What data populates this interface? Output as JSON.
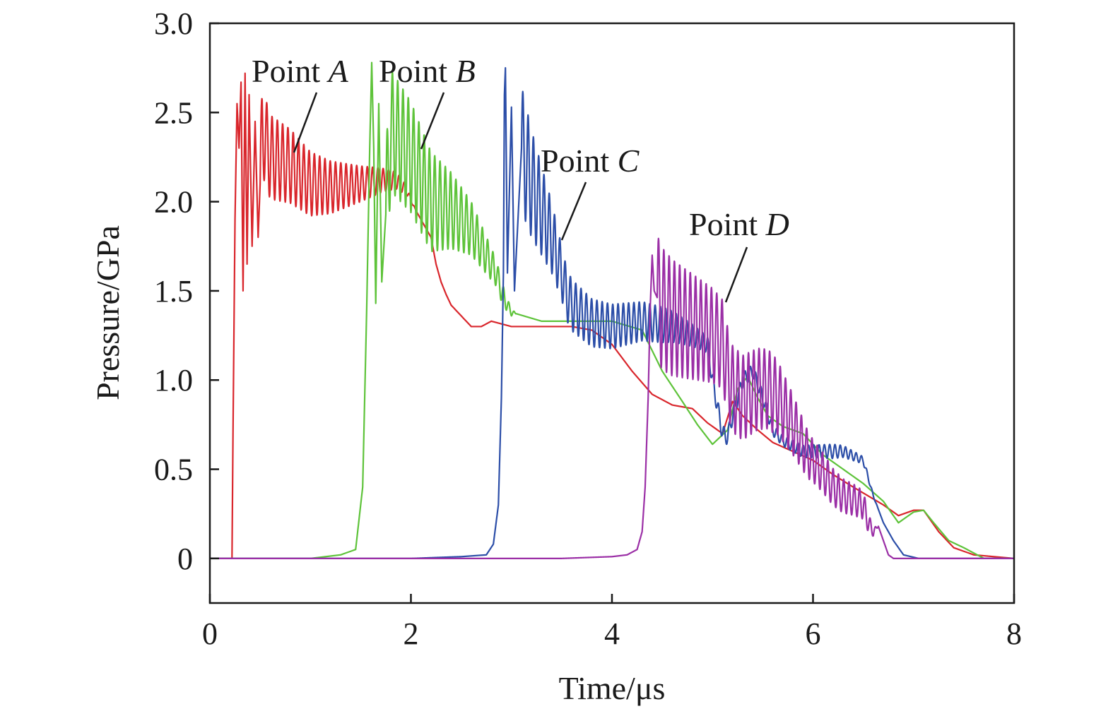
{
  "chart_data": {
    "type": "line",
    "xlabel": "Time/μs",
    "ylabel": "Pressure/GPa",
    "xlim": [
      0,
      8
    ],
    "ylim": [
      -0.25,
      3.0
    ],
    "xticks": [
      0,
      2,
      4,
      6,
      8
    ],
    "xtick_labels": [
      "0",
      "2",
      "4",
      "6",
      "8"
    ],
    "yticks": [
      0,
      0.5,
      1.0,
      1.5,
      2.0,
      2.5,
      3.0
    ],
    "ytick_labels": [
      "0",
      "0.5",
      "1.0",
      "1.5",
      "2.0",
      "2.5",
      "3.0"
    ],
    "grid": false,
    "annotations": [
      {
        "prefix": "Point ",
        "letter": "A"
      },
      {
        "prefix": "Point ",
        "letter": "B"
      },
      {
        "prefix": "Point ",
        "letter": "C"
      },
      {
        "prefix": "Point ",
        "letter": "D"
      }
    ],
    "series": [
      {
        "color": "#d9262c",
        "points": [
          [
            0,
            0
          ],
          [
            0.22,
            0
          ],
          [
            0.23,
            0.7
          ],
          [
            0.25,
            1.9
          ],
          [
            0.27,
            2.55
          ],
          [
            0.29,
            2.3
          ],
          [
            0.31,
            2.67
          ],
          [
            0.33,
            1.5
          ],
          [
            0.35,
            2.72
          ],
          [
            0.37,
            1.65
          ],
          [
            0.39,
            2.6
          ],
          [
            0.42,
            1.75
          ],
          [
            0.45,
            2.45
          ],
          [
            0.48,
            1.8
          ],
          [
            0.52,
            2.4
          ],
          [
            0.6,
            2.25
          ],
          [
            0.8,
            2.2
          ],
          [
            1.0,
            2.1
          ],
          [
            1.2,
            2.08
          ],
          [
            1.5,
            2.1
          ],
          [
            1.7,
            2.12
          ],
          [
            1.85,
            2.12
          ],
          [
            1.95,
            2.07
          ],
          [
            2.05,
            1.95
          ],
          [
            2.15,
            1.85
          ],
          [
            2.2,
            1.8
          ],
          [
            2.25,
            1.65
          ],
          [
            2.3,
            1.55
          ],
          [
            2.35,
            1.48
          ],
          [
            2.4,
            1.42
          ],
          [
            2.5,
            1.36
          ],
          [
            2.6,
            1.3
          ],
          [
            2.7,
            1.3
          ],
          [
            2.8,
            1.33
          ],
          [
            3.0,
            1.3
          ],
          [
            3.3,
            1.3
          ],
          [
            3.6,
            1.3
          ],
          [
            3.8,
            1.28
          ],
          [
            4.0,
            1.2
          ],
          [
            4.2,
            1.05
          ],
          [
            4.4,
            0.92
          ],
          [
            4.6,
            0.86
          ],
          [
            4.8,
            0.84
          ],
          [
            4.95,
            0.76
          ],
          [
            5.1,
            0.7
          ],
          [
            5.2,
            0.88
          ],
          [
            5.3,
            0.8
          ],
          [
            5.45,
            0.72
          ],
          [
            5.6,
            0.65
          ],
          [
            5.8,
            0.6
          ],
          [
            6.0,
            0.55
          ],
          [
            6.2,
            0.47
          ],
          [
            6.4,
            0.4
          ],
          [
            6.55,
            0.35
          ],
          [
            6.7,
            0.3
          ],
          [
            6.85,
            0.24
          ],
          [
            7.0,
            0.27
          ],
          [
            7.1,
            0.27
          ],
          [
            7.25,
            0.15
          ],
          [
            7.4,
            0.06
          ],
          [
            7.6,
            0.02
          ],
          [
            8.0,
            0
          ]
        ],
        "osc": [
          [
            0.5,
            2.1,
            0.25
          ],
          [
            1.0,
            2.08,
            0.18
          ],
          [
            1.5,
            2.1,
            0.1
          ],
          [
            1.9,
            2.1,
            0.04
          ]
        ]
      },
      {
        "color": "#5ec33a",
        "points": [
          [
            0,
            0
          ],
          [
            1.0,
            0
          ],
          [
            1.3,
            0.02
          ],
          [
            1.45,
            0.05
          ],
          [
            1.52,
            0.4
          ],
          [
            1.56,
            1.4
          ],
          [
            1.59,
            2.3
          ],
          [
            1.61,
            2.78
          ],
          [
            1.63,
            2.3
          ],
          [
            1.65,
            1.43
          ],
          [
            1.68,
            2.55
          ],
          [
            1.71,
            1.55
          ],
          [
            1.8,
            2.4
          ],
          [
            2.0,
            2.25
          ],
          [
            2.2,
            2.0
          ],
          [
            2.4,
            1.95
          ],
          [
            2.5,
            1.9
          ],
          [
            2.6,
            1.85
          ],
          [
            2.7,
            1.75
          ],
          [
            2.8,
            1.65
          ],
          [
            2.85,
            1.6
          ],
          [
            2.9,
            1.5
          ],
          [
            2.95,
            1.43
          ],
          [
            3.0,
            1.38
          ],
          [
            3.3,
            1.33
          ],
          [
            3.6,
            1.33
          ],
          [
            4.0,
            1.33
          ],
          [
            4.3,
            1.28
          ],
          [
            4.5,
            1.05
          ],
          [
            4.7,
            0.88
          ],
          [
            4.85,
            0.75
          ],
          [
            5.0,
            0.64
          ],
          [
            5.15,
            0.72
          ],
          [
            5.25,
            0.95
          ],
          [
            5.35,
            1.02
          ],
          [
            5.45,
            0.9
          ],
          [
            5.55,
            0.8
          ],
          [
            5.7,
            0.74
          ],
          [
            5.9,
            0.7
          ],
          [
            6.1,
            0.58
          ],
          [
            6.3,
            0.5
          ],
          [
            6.5,
            0.42
          ],
          [
            6.7,
            0.32
          ],
          [
            6.85,
            0.2
          ],
          [
            7.0,
            0.26
          ],
          [
            7.1,
            0.27
          ],
          [
            7.2,
            0.2
          ],
          [
            7.35,
            0.1
          ],
          [
            7.5,
            0.06
          ],
          [
            7.7,
            0
          ],
          [
            8.0,
            0
          ]
        ],
        "osc": [
          [
            1.75,
            2.1,
            0.35
          ],
          [
            2.2,
            2.0,
            0.28
          ],
          [
            2.6,
            1.8,
            0.15
          ],
          [
            2.9,
            1.5,
            0.06
          ]
        ]
      },
      {
        "color": "#2c4ea8",
        "points": [
          [
            0,
            0
          ],
          [
            2.0,
            0
          ],
          [
            2.5,
            0.01
          ],
          [
            2.75,
            0.02
          ],
          [
            2.82,
            0.08
          ],
          [
            2.87,
            0.3
          ],
          [
            2.9,
            0.9
          ],
          [
            2.92,
            1.6
          ],
          [
            2.93,
            2.6
          ],
          [
            2.94,
            2.75
          ],
          [
            2.96,
            1.6
          ],
          [
            3.0,
            2.53
          ],
          [
            3.03,
            1.5
          ],
          [
            3.1,
            2.3
          ],
          [
            3.2,
            2.1
          ],
          [
            3.3,
            1.95
          ],
          [
            3.4,
            1.8
          ],
          [
            3.5,
            1.6
          ],
          [
            3.55,
            1.48
          ],
          [
            3.6,
            1.42
          ],
          [
            3.8,
            1.32
          ],
          [
            4.0,
            1.3
          ],
          [
            4.3,
            1.33
          ],
          [
            4.6,
            1.3
          ],
          [
            4.8,
            1.25
          ],
          [
            4.95,
            1.2
          ],
          [
            5.0,
            1.0
          ],
          [
            5.05,
            0.85
          ],
          [
            5.1,
            0.7
          ],
          [
            5.15,
            0.68
          ],
          [
            5.2,
            0.8
          ],
          [
            5.3,
            1.0
          ],
          [
            5.4,
            1.05
          ],
          [
            5.5,
            0.9
          ],
          [
            5.6,
            0.72
          ],
          [
            5.7,
            0.66
          ],
          [
            5.9,
            0.6
          ],
          [
            6.1,
            0.6
          ],
          [
            6.3,
            0.6
          ],
          [
            6.5,
            0.55
          ],
          [
            6.6,
            0.35
          ],
          [
            6.7,
            0.2
          ],
          [
            6.8,
            0.1
          ],
          [
            6.9,
            0.02
          ],
          [
            7.05,
            0
          ],
          [
            8.0,
            0
          ]
        ],
        "osc": [
          [
            3.1,
            2.2,
            0.35
          ],
          [
            3.5,
            1.65,
            0.15
          ],
          [
            3.7,
            1.3,
            0.14
          ],
          [
            4.5,
            1.32,
            0.1
          ],
          [
            4.9,
            1.2,
            0.05
          ],
          [
            5.7,
            0.6,
            0.03
          ],
          [
            6.2,
            0.6,
            0.04
          ],
          [
            6.5,
            0.5,
            0.02
          ]
        ]
      },
      {
        "color": "#9b2fa6",
        "points": [
          [
            0,
            0
          ],
          [
            3.5,
            0
          ],
          [
            4.0,
            0.01
          ],
          [
            4.15,
            0.02
          ],
          [
            4.25,
            0.05
          ],
          [
            4.3,
            0.15
          ],
          [
            4.33,
            0.4
          ],
          [
            4.36,
            0.9
          ],
          [
            4.38,
            1.4
          ],
          [
            4.4,
            1.7
          ],
          [
            4.42,
            1.5
          ],
          [
            4.5,
            1.4
          ],
          [
            4.6,
            1.35
          ],
          [
            4.8,
            1.3
          ],
          [
            5.0,
            1.25
          ],
          [
            5.1,
            1.2
          ],
          [
            5.15,
            1.05
          ],
          [
            5.2,
            0.95
          ],
          [
            5.3,
            0.9
          ],
          [
            5.45,
            0.95
          ],
          [
            5.55,
            0.95
          ],
          [
            5.65,
            0.9
          ],
          [
            5.8,
            0.75
          ],
          [
            5.95,
            0.58
          ],
          [
            6.1,
            0.48
          ],
          [
            6.2,
            0.4
          ],
          [
            6.3,
            0.35
          ],
          [
            6.4,
            0.33
          ],
          [
            6.5,
            0.3
          ],
          [
            6.55,
            0.2
          ],
          [
            6.6,
            0.15
          ],
          [
            6.65,
            0.18
          ],
          [
            6.7,
            0.1
          ],
          [
            6.75,
            0.02
          ],
          [
            6.8,
            0
          ],
          [
            8.0,
            0
          ]
        ],
        "osc": [
          [
            4.45,
            1.3,
            0.35
          ],
          [
            5.1,
            1.25,
            0.25
          ],
          [
            5.6,
            0.95,
            0.22
          ],
          [
            6.0,
            0.55,
            0.12
          ],
          [
            6.5,
            0.28,
            0.08
          ]
        ]
      }
    ]
  }
}
